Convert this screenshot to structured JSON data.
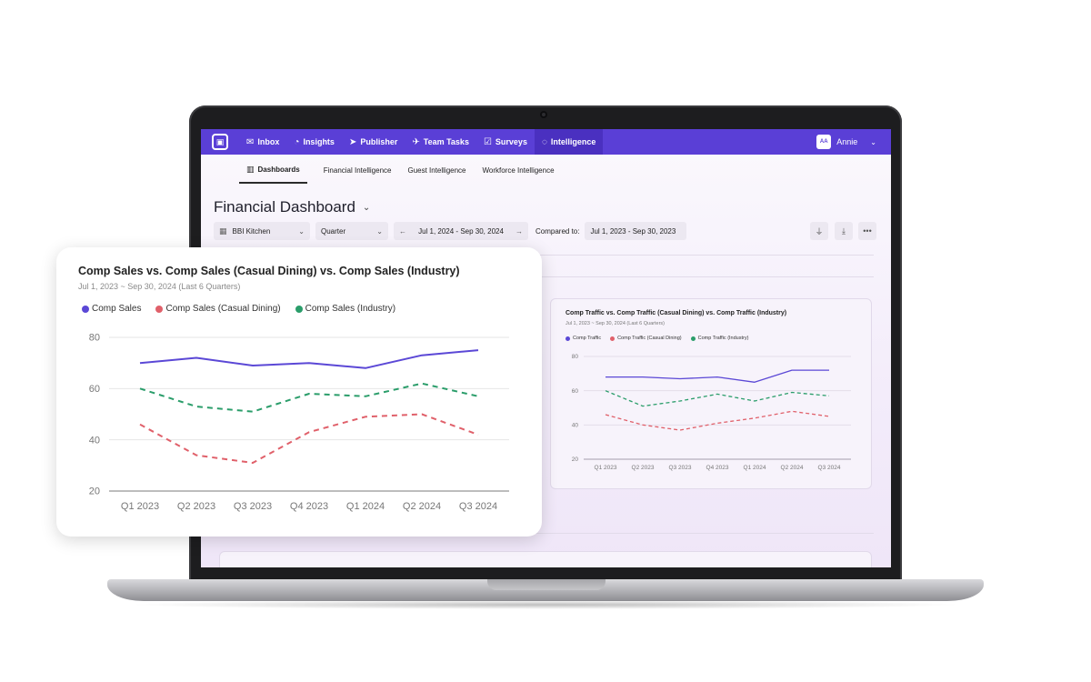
{
  "nav": {
    "items": [
      {
        "label": "Inbox",
        "icon": "mail-icon"
      },
      {
        "label": "Insights",
        "icon": "pie-icon"
      },
      {
        "label": "Publisher",
        "icon": "send-icon"
      },
      {
        "label": "Team Tasks",
        "icon": "rocket-icon"
      },
      {
        "label": "Surveys",
        "icon": "clipboard-icon"
      },
      {
        "label": "Intelligence",
        "icon": "orbit-icon"
      }
    ],
    "active": "Intelligence",
    "user": {
      "initials": "AA",
      "name": "Annie"
    }
  },
  "subnav": {
    "tabs": [
      "Dashboards",
      "Financial Intelligence",
      "Guest Intelligence",
      "Workforce Intelligence"
    ],
    "active": "Dashboards"
  },
  "page": {
    "title": "Financial Dashboard"
  },
  "filters": {
    "location": "BBI Kitchen",
    "period": "Quarter",
    "date_range": "Jul 1, 2024 - Sep 30, 2024",
    "compared_label": "Compared to:",
    "compared_range": "Jul 1, 2023 - Sep 30, 2023"
  },
  "colors": {
    "brand": "#5a3fd6",
    "series1": "#5b48d6",
    "series2": "#e0606a",
    "series3": "#2a9d6a"
  },
  "chart_data": [
    {
      "type": "line",
      "title": "Comp Sales vs. Comp Sales (Casual Dining) vs. Comp Sales (Industry)",
      "subtitle": "Jul 1, 2023 ~ Sep 30, 2024 (Last 6 Quarters)",
      "categories": [
        "Q1 2023",
        "Q2 2023",
        "Q3 2023",
        "Q4 2023",
        "Q1 2024",
        "Q2 2024",
        "Q3 2024"
      ],
      "series": [
        {
          "name": "Comp Sales",
          "values": [
            70,
            72,
            69,
            70,
            68,
            73,
            75
          ]
        },
        {
          "name": "Comp Sales (Casual Dining)",
          "values": [
            46,
            34,
            31,
            43,
            49,
            50,
            42
          ]
        },
        {
          "name": "Comp Sales (Industry)",
          "values": [
            60,
            53,
            51,
            58,
            57,
            62,
            57
          ]
        }
      ],
      "yticks": [
        80,
        60,
        40,
        20
      ],
      "ylim": [
        20,
        80
      ],
      "legend": "top-left",
      "grid": true
    },
    {
      "type": "line",
      "title": "Comp Traffic vs. Comp Traffic (Casual Dining) vs. Comp Traffic (Industry)",
      "subtitle": "Jul 1, 2023 ~ Sep 30, 2024 (Last 6 Quarters)",
      "categories": [
        "Q1 2023",
        "Q2 2023",
        "Q3 2023",
        "Q4 2023",
        "Q1 2024",
        "Q2 2024",
        "Q3 2024"
      ],
      "series": [
        {
          "name": "Comp Traffic",
          "values": [
            68,
            68,
            67,
            68,
            65,
            72,
            72
          ]
        },
        {
          "name": "Comp Traffic (Casual Dining)",
          "values": [
            46,
            40,
            37,
            41,
            44,
            48,
            45
          ]
        },
        {
          "name": "Comp Traffic (Industry)",
          "values": [
            60,
            51,
            54,
            58,
            54,
            59,
            57
          ]
        }
      ],
      "yticks": [
        80,
        60,
        40,
        20
      ],
      "ylim": [
        20,
        80
      ],
      "legend": "top-left",
      "grid": true
    }
  ]
}
